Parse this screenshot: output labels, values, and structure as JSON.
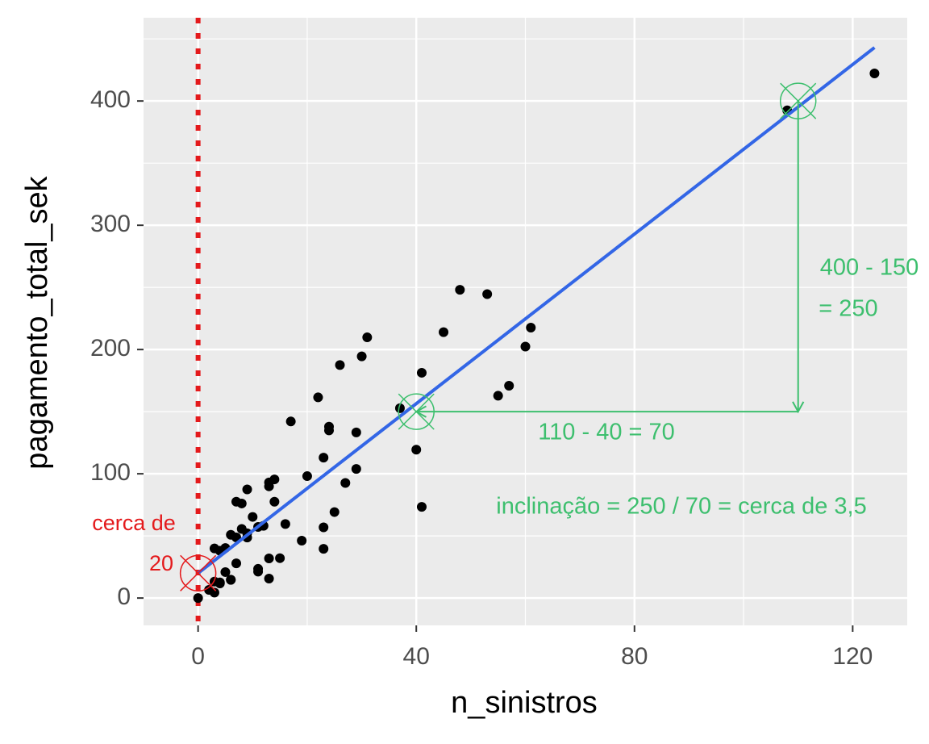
{
  "chart_data": {
    "type": "scatter",
    "x_label": "n_sinistros",
    "y_label": "pagamento_total_sek",
    "xlim": [
      -10,
      130
    ],
    "ylim": [
      -22,
      467
    ],
    "xticks": [
      0,
      40,
      80,
      120
    ],
    "yticks": [
      0,
      100,
      200,
      300,
      400
    ],
    "x_minor_ticks": [
      20,
      60,
      100
    ],
    "y_minor_ticks": [
      50,
      150,
      250,
      350,
      450
    ],
    "grid": true,
    "color": "#000000",
    "x": [
      108,
      19,
      13,
      124,
      40,
      57,
      23,
      14,
      45,
      10,
      5,
      48,
      11,
      23,
      7,
      2,
      24,
      6,
      3,
      23,
      6,
      9,
      9,
      3,
      29,
      7,
      4,
      20,
      7,
      4,
      0,
      25,
      6,
      5,
      22,
      11,
      61,
      12,
      4,
      16,
      13,
      60,
      41,
      37,
      55,
      41,
      11,
      27,
      8,
      3,
      17,
      13,
      13,
      15,
      8,
      29,
      30,
      24,
      9,
      31,
      14,
      53,
      26
    ],
    "values": [
      392.5,
      46.2,
      15.7,
      422.2,
      119.4,
      170.9,
      56.9,
      77.5,
      214,
      65.3,
      20.9,
      248.1,
      23.5,
      39.6,
      48.8,
      6.6,
      134.9,
      50.9,
      4.4,
      113,
      14.8,
      48.7,
      52.1,
      13.2,
      103.9,
      77.5,
      11.8,
      98.1,
      27.9,
      38.1,
      0,
      69.2,
      14.6,
      40.3,
      161.5,
      57.2,
      217.6,
      58.1,
      12.6,
      59.6,
      89.9,
      202.4,
      181.3,
      152.8,
      162.8,
      73.4,
      21.3,
      92.6,
      76.1,
      39.9,
      142.1,
      93,
      31.9,
      32.1,
      55.6,
      133.3,
      194.5,
      137.9,
      87.4,
      209.8,
      95.5,
      244.6,
      187.5
    ],
    "regression": {
      "x": [
        0,
        124
      ],
      "values": [
        20,
        443
      ],
      "color": "#3366e6"
    },
    "vline": {
      "x": 0,
      "color": "#e41a1c"
    },
    "markers": [
      {
        "x": 0,
        "y": 20,
        "color": "#e41a1c"
      },
      {
        "x": 40,
        "y": 150,
        "color": "#3dbf6e"
      },
      {
        "x": 110,
        "y": 400,
        "color": "#3dbf6e"
      }
    ],
    "arrows": [
      {
        "x": [
          110,
          40
        ],
        "y": [
          150,
          150
        ],
        "color": "#3dbf6e"
      },
      {
        "x": [
          110,
          110
        ],
        "y": [
          400,
          150
        ],
        "color": "#3dbf6e"
      }
    ],
    "annotations": [
      {
        "text": "cerca de",
        "color": "#e41a1c"
      },
      {
        "text": "20",
        "color": "#e41a1c"
      },
      {
        "text": "110 - 40 = 70",
        "color": "#3dbf6e"
      },
      {
        "text": "400 - 150",
        "color": "#3dbf6e"
      },
      {
        "text": "= 250",
        "color": "#3dbf6e"
      },
      {
        "text": "inclinação = 250 / 70 = cerca de 3,5",
        "color": "#3dbf6e"
      }
    ]
  }
}
